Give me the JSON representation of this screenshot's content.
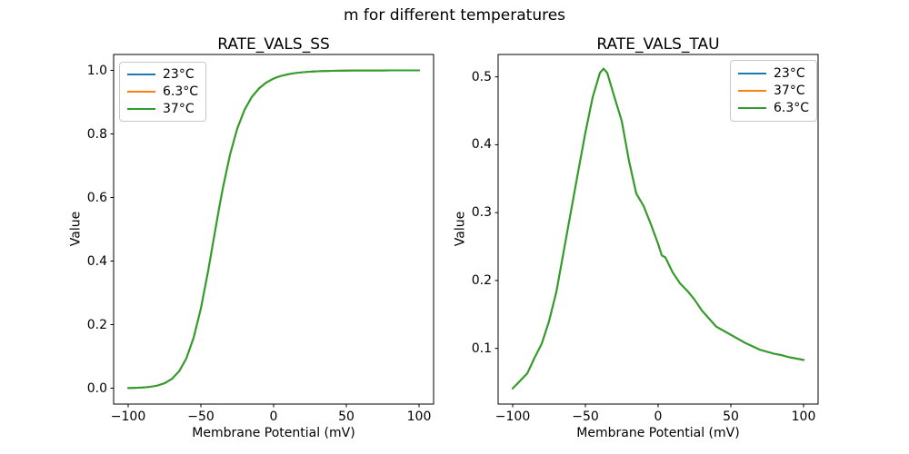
{
  "figure": {
    "suptitle": "m for different temperatures",
    "background": "#ffffff",
    "text_color": "#000000",
    "spine_color": "#000000"
  },
  "chart_data": [
    {
      "type": "line",
      "title": "RATE_VALS_SS",
      "xlabel": "Membrane Potential (mV)",
      "ylabel": "Value",
      "xlim": [
        -110,
        110
      ],
      "ylim": [
        -0.05,
        1.05
      ],
      "xticks": [
        -100,
        -50,
        0,
        50,
        100
      ],
      "xtick_labels": [
        "−100",
        "−50",
        "0",
        "50",
        "100"
      ],
      "yticks": [
        0.0,
        0.2,
        0.4,
        0.6,
        0.8,
        1.0
      ],
      "ytick_labels": [
        "0.0",
        "0.2",
        "0.4",
        "0.6",
        "0.8",
        "1.0"
      ],
      "grid": false,
      "legend": {
        "position": "upper-left",
        "entries": [
          {
            "label": "23°C",
            "color": "#1f77b4"
          },
          {
            "label": "6.3°C",
            "color": "#ff7f0e"
          },
          {
            "label": "37°C",
            "color": "#2ca02c"
          }
        ]
      },
      "x": [
        -100,
        -95,
        -90,
        -85,
        -80,
        -75,
        -70,
        -65,
        -60,
        -55,
        -50,
        -45,
        -40,
        -37.5,
        -35,
        -30,
        -25,
        -20,
        -15,
        -10,
        -5,
        0,
        2.5,
        5,
        10,
        15,
        20,
        25,
        30,
        35,
        40,
        45,
        50,
        55,
        60,
        65,
        70,
        75,
        80,
        85,
        90,
        95,
        100
      ],
      "series": [
        {
          "name": "23°C",
          "color": "#1f77b4",
          "values": [
            0.0005,
            0.0011,
            0.0021,
            0.0041,
            0.008,
            0.0154,
            0.0289,
            0.0529,
            0.0937,
            0.1586,
            0.2508,
            0.3692,
            0.5006,
            0.5655,
            0.6271,
            0.7342,
            0.8169,
            0.8757,
            0.9163,
            0.9434,
            0.9619,
            0.9742,
            0.9787,
            0.9823,
            0.9878,
            0.9916,
            0.9941,
            0.9959,
            0.9971,
            0.9979,
            0.9985,
            0.999,
            0.9993,
            0.9995,
            0.9996,
            0.9997,
            0.9998,
            0.9998,
            0.9999,
            0.9999,
            0.9999,
            1.0,
            1.0
          ]
        },
        {
          "name": "6.3°C",
          "color": "#ff7f0e",
          "values": [
            0.0005,
            0.0011,
            0.0021,
            0.0041,
            0.008,
            0.0154,
            0.0289,
            0.0529,
            0.0937,
            0.1586,
            0.2508,
            0.3692,
            0.5006,
            0.5655,
            0.6271,
            0.7342,
            0.8169,
            0.8757,
            0.9163,
            0.9434,
            0.9619,
            0.9742,
            0.9787,
            0.9823,
            0.9878,
            0.9916,
            0.9941,
            0.9959,
            0.9971,
            0.9979,
            0.9985,
            0.999,
            0.9993,
            0.9995,
            0.9996,
            0.9997,
            0.9998,
            0.9998,
            0.9999,
            0.9999,
            0.9999,
            1.0,
            1.0
          ]
        },
        {
          "name": "37°C",
          "color": "#2ca02c",
          "values": [
            0.0005,
            0.0011,
            0.0021,
            0.0041,
            0.008,
            0.0154,
            0.0289,
            0.0529,
            0.0937,
            0.1586,
            0.2508,
            0.3692,
            0.5006,
            0.5655,
            0.6271,
            0.7342,
            0.8169,
            0.8757,
            0.9163,
            0.9434,
            0.9619,
            0.9742,
            0.9787,
            0.9823,
            0.9878,
            0.9916,
            0.9941,
            0.9959,
            0.9971,
            0.9979,
            0.9985,
            0.999,
            0.9993,
            0.9995,
            0.9996,
            0.9997,
            0.9998,
            0.9998,
            0.9999,
            0.9999,
            0.9999,
            1.0,
            1.0
          ]
        }
      ],
      "note": "All three temperature curves overlap exactly; only the last-drawn green (37°C) curve is visible."
    },
    {
      "type": "line",
      "title": "RATE_VALS_TAU",
      "xlabel": "Membrane Potential (mV)",
      "ylabel": "Value",
      "xlim": [
        -110,
        110
      ],
      "ylim": [
        0.018,
        0.533
      ],
      "xticks": [
        -100,
        -50,
        0,
        50,
        100
      ],
      "xtick_labels": [
        "−100",
        "−50",
        "0",
        "50",
        "100"
      ],
      "yticks": [
        0.1,
        0.2,
        0.3,
        0.4,
        0.5
      ],
      "ytick_labels": [
        "0.1",
        "0.2",
        "0.3",
        "0.4",
        "0.5"
      ],
      "grid": false,
      "legend": {
        "position": "upper-right",
        "entries": [
          {
            "label": "23°C",
            "color": "#1f77b4"
          },
          {
            "label": "37°C",
            "color": "#ff7f0e"
          },
          {
            "label": "6.3°C",
            "color": "#2ca02c"
          }
        ]
      },
      "x": [
        -100,
        -95,
        -90,
        -85,
        -80,
        -75,
        -70,
        -65,
        -60,
        -55,
        -50,
        -45,
        -40,
        -37.5,
        -35,
        -30,
        -25,
        -20,
        -15,
        -10,
        -5,
        0,
        2.5,
        5,
        10,
        15,
        20,
        25,
        30,
        35,
        40,
        45,
        50,
        55,
        60,
        65,
        70,
        75,
        80,
        85,
        90,
        95,
        100
      ],
      "series": [
        {
          "name": "23°C",
          "color": "#1f77b4",
          "values": [
            0.041,
            0.052,
            0.063,
            0.086,
            0.107,
            0.14,
            0.183,
            0.242,
            0.301,
            0.36,
            0.418,
            0.47,
            0.506,
            0.512,
            0.506,
            0.47,
            0.435,
            0.376,
            0.328,
            0.31,
            0.283,
            0.254,
            0.237,
            0.234,
            0.212,
            0.196,
            0.185,
            0.172,
            0.156,
            0.144,
            0.132,
            0.126,
            0.12,
            0.114,
            0.108,
            0.103,
            0.098,
            0.095,
            0.092,
            0.09,
            0.087,
            0.085,
            0.083
          ]
        },
        {
          "name": "37°C",
          "color": "#ff7f0e",
          "values": [
            0.041,
            0.052,
            0.063,
            0.086,
            0.107,
            0.14,
            0.183,
            0.242,
            0.301,
            0.36,
            0.418,
            0.47,
            0.506,
            0.512,
            0.506,
            0.47,
            0.435,
            0.376,
            0.328,
            0.31,
            0.283,
            0.254,
            0.237,
            0.234,
            0.212,
            0.196,
            0.185,
            0.172,
            0.156,
            0.144,
            0.132,
            0.126,
            0.12,
            0.114,
            0.108,
            0.103,
            0.098,
            0.095,
            0.092,
            0.09,
            0.087,
            0.085,
            0.083
          ]
        },
        {
          "name": "6.3°C",
          "color": "#2ca02c",
          "values": [
            0.041,
            0.052,
            0.063,
            0.086,
            0.107,
            0.14,
            0.183,
            0.242,
            0.301,
            0.36,
            0.418,
            0.47,
            0.506,
            0.512,
            0.506,
            0.47,
            0.435,
            0.376,
            0.328,
            0.31,
            0.283,
            0.254,
            0.237,
            0.234,
            0.212,
            0.196,
            0.185,
            0.172,
            0.156,
            0.144,
            0.132,
            0.126,
            0.12,
            0.114,
            0.108,
            0.103,
            0.098,
            0.095,
            0.092,
            0.09,
            0.087,
            0.085,
            0.083
          ]
        }
      ],
      "note": "All three temperature curves overlap exactly; only the last-drawn green (6.3°C) curve is visible. Peak ≈ 0.512 near −37.5 mV."
    }
  ]
}
